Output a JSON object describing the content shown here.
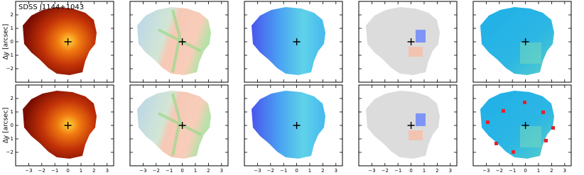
{
  "chart_data": {
    "type": "map",
    "title": "SDSS J1144+1043",
    "ylabel": "Δy [arcsec]",
    "xlim": [
      -4,
      3.5
    ],
    "ylim": [
      -3,
      3
    ],
    "xticks": [
      {
        "value": -3,
        "label": "−3"
      },
      {
        "value": -2,
        "label": "−2"
      },
      {
        "value": -1,
        "label": "−1"
      },
      0,
      1,
      2,
      3
    ],
    "yticks": [
      {
        "value": -2,
        "label": "−2"
      },
      {
        "value": -1,
        "label": "−1"
      },
      0,
      1,
      2
    ]
  }
}
